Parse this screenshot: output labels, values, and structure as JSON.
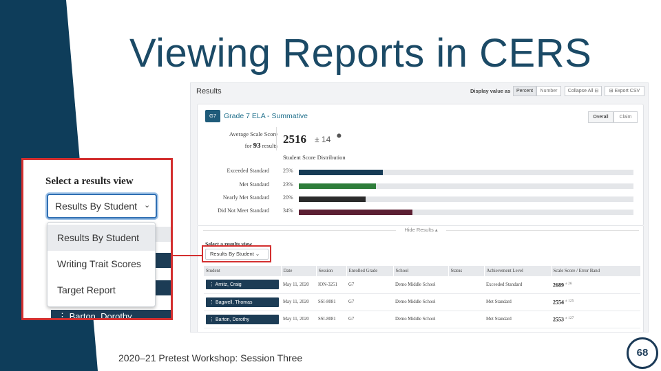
{
  "slide": {
    "title": "Viewing Reports in CERS",
    "footer": "2020–21 Pretest Workshop: Session Three",
    "page_number": "68",
    "colors": {
      "navy": "#0e3d5a",
      "title": "#1b4a66",
      "highlight": "#d32f2f"
    }
  },
  "screenshot": {
    "header_title": "Results",
    "display_value_label": "Display value as",
    "display_options": [
      "Percent",
      "Number"
    ],
    "collapse_all": "Collapse All ⊟",
    "export_csv": "⊞ Export CSV",
    "card": {
      "grade_badge": "G7",
      "title": "Grade 7 ELA - Summative",
      "toggles": [
        "Overall",
        "Claim"
      ],
      "avg_label": "Average Scale Score",
      "for_label": "for",
      "result_count": "93",
      "results_label": "results",
      "score": "2516",
      "error": "± 14",
      "dist_label": "Student Score Distribution",
      "levels": [
        {
          "label": "Exceeded Standard",
          "pct_text": "25%",
          "pct": 25,
          "color": "#163b55"
        },
        {
          "label": "Met Standard",
          "pct_text": "23%",
          "pct": 23,
          "color": "#2e7d3a"
        },
        {
          "label": "Nearly Met Standard",
          "pct_text": "20%",
          "pct": 20,
          "color": "#2b2b2b"
        },
        {
          "label": "Did Not Meet Standard",
          "pct_text": "34%",
          "pct": 34,
          "color": "#5c1f33"
        }
      ]
    },
    "hide_results": "Hide Results ▴",
    "select_view_label": "Select a results view",
    "select_view_value": "Results By Student ⌄",
    "table": {
      "columns": [
        "Student",
        "Date",
        "Session",
        "Enrolled Grade",
        "School",
        "Status",
        "Achievement Level",
        "Scale Score / Error Band"
      ],
      "rows": [
        {
          "student": "⋮  Amitz, Craig",
          "date": "May 11, 2020",
          "session": "ION-3251",
          "grade": "G7",
          "school": "Demo Middle School",
          "status": "",
          "level": "Exceeded Standard",
          "score": "2689",
          "err": "± 26"
        },
        {
          "student": "⋮  Bagwell, Thomas",
          "date": "May 11, 2020",
          "session": "SSI-8081",
          "grade": "G7",
          "school": "Demo Middle School",
          "status": "",
          "level": "Met Standard",
          "score": "2554",
          "err": "± 125"
        },
        {
          "student": "⋮  Barton, Dorothy",
          "date": "May 11, 2020",
          "session": "SSI-8081",
          "grade": "G7",
          "school": "Demo Middle School",
          "status": "",
          "level": "Met Standard",
          "score": "2553",
          "err": "± 127"
        }
      ]
    }
  },
  "inset": {
    "title": "Select a results view",
    "dropdown_value": "Results By Student",
    "options": [
      "Results By Student",
      "Writing Trait Scores",
      "Target Report"
    ],
    "peek_name": "⋮  Barton, Dorothy"
  }
}
